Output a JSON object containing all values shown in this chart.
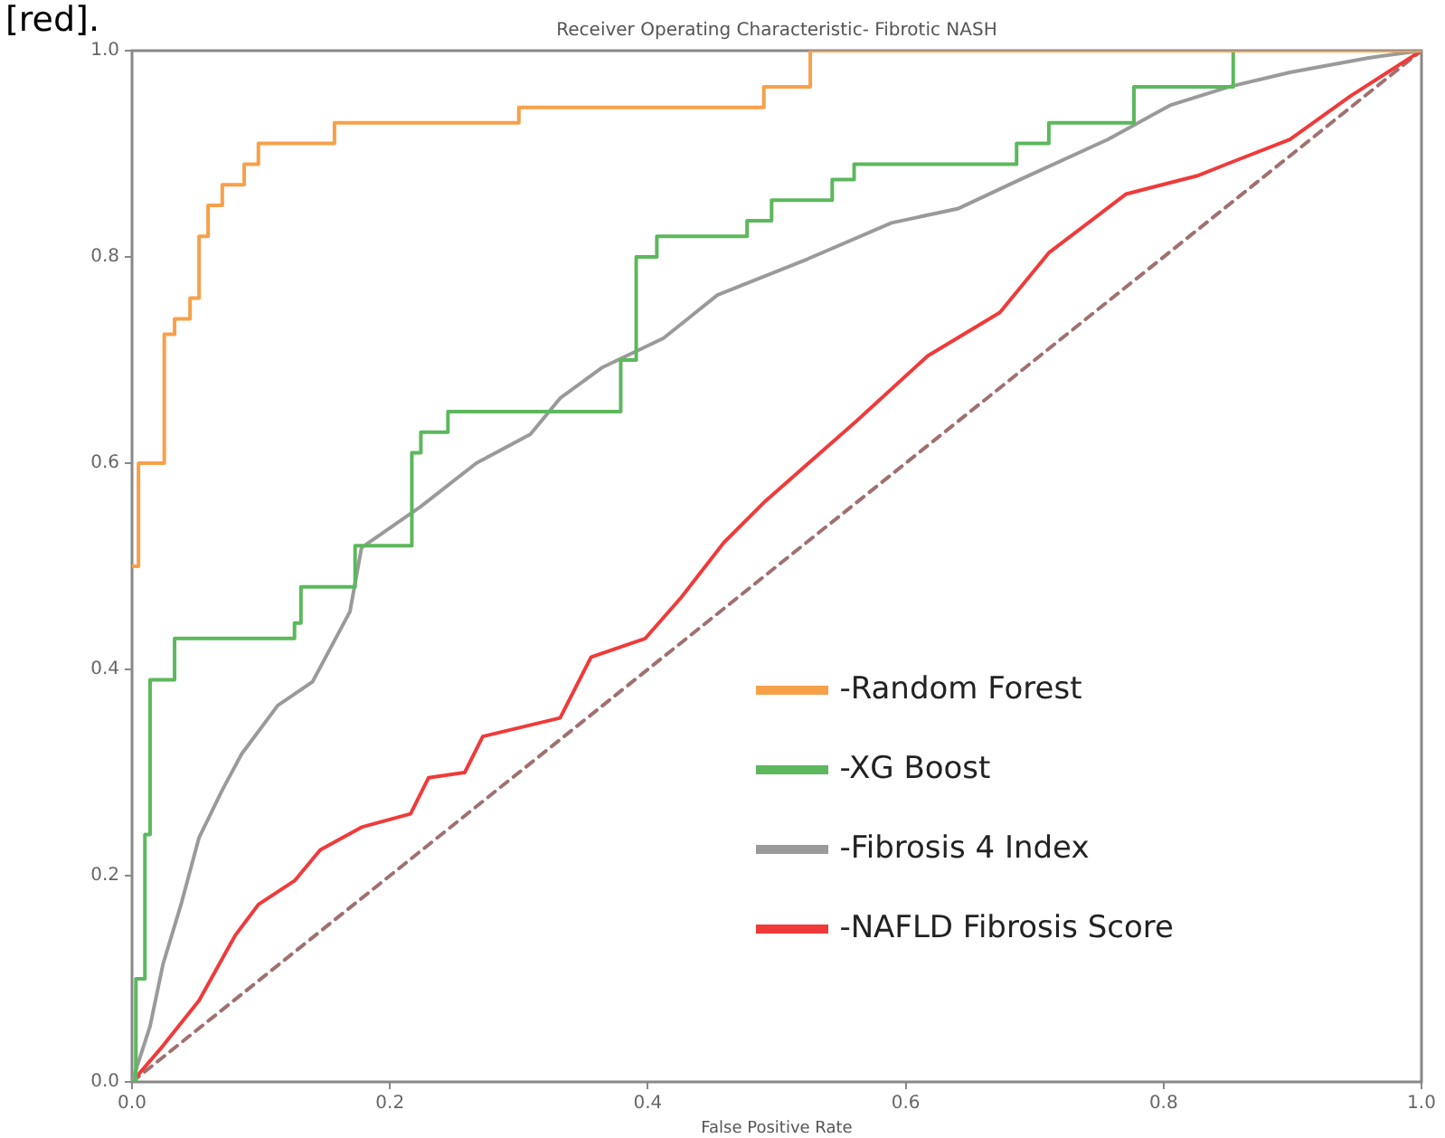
{
  "chart_data": {
    "type": "line",
    "title": "Receiver Operating Characteristic- Fibrotic NASH",
    "xlabel": "False Positive Rate",
    "annotations": [
      "[red]."
    ],
    "xlim": [
      0,
      1
    ],
    "ylim": [
      0,
      1
    ],
    "xticks": [
      {
        "value": 0,
        "label": "0.0"
      },
      {
        "value": 0.2,
        "label": "0.2"
      },
      {
        "value": 0.4,
        "label": "0.4"
      },
      {
        "value": 0.6,
        "label": "0.6"
      },
      {
        "value": 0.8,
        "label": "0.8"
      },
      {
        "value": 1,
        "label": "1.0"
      }
    ],
    "yticks": [
      {
        "value": 0,
        "label": "0.0"
      },
      {
        "value": 0.2,
        "label": "0.2"
      },
      {
        "value": 0.4,
        "label": "0.4"
      },
      {
        "value": 0.6,
        "label": "0.6"
      },
      {
        "value": 0.8,
        "label": "0.8"
      },
      {
        "value": 1,
        "label": "1.0"
      }
    ],
    "grid": false,
    "legend": "bottom right",
    "marker": "none",
    "series": [
      {
        "name": "-Random Forest",
        "type": "step",
        "color": "#f7a04a",
        "x": [
          0,
          0.005,
          0.025,
          0.033,
          0.045,
          0.052,
          0.059,
          0.07,
          0.087,
          0.098,
          0.157,
          0.3,
          0.49,
          0.526,
          1
        ],
        "values": [
          0.5,
          0.6,
          0.725,
          0.74,
          0.76,
          0.82,
          0.85,
          0.87,
          0.89,
          0.91,
          0.93,
          0.945,
          0.965,
          1,
          1
        ]
      },
      {
        "name": "-XG Boost",
        "type": "step",
        "color": "#5cb85c",
        "x": [
          0,
          0.003,
          0.01,
          0.014,
          0.033,
          0.126,
          0.131,
          0.173,
          0.217,
          0.224,
          0.245,
          0.379,
          0.391,
          0.407,
          0.477,
          0.496,
          0.543,
          0.56,
          0.686,
          0.711,
          0.777,
          0.854,
          1
        ],
        "values": [
          0,
          0.1,
          0.24,
          0.39,
          0.43,
          0.445,
          0.48,
          0.52,
          0.61,
          0.63,
          0.65,
          0.7,
          0.8,
          0.82,
          0.835,
          0.855,
          0.875,
          0.89,
          0.91,
          0.93,
          0.965,
          1,
          1
        ]
      },
      {
        "name": "-Fibrosis  4 Index",
        "color": "#9a9a9a",
        "x": [
          0,
          0.014,
          0.024,
          0.038,
          0.052,
          0.07,
          0.085,
          0.113,
          0.14,
          0.169,
          0.178,
          0.224,
          0.267,
          0.309,
          0.332,
          0.365,
          0.412,
          0.454,
          0.524,
          0.589,
          0.641,
          0.687,
          0.757,
          0.805,
          0.851,
          0.898,
          0.959,
          1
        ],
        "values": [
          0,
          0.054,
          0.114,
          0.172,
          0.237,
          0.283,
          0.318,
          0.365,
          0.388,
          0.456,
          0.518,
          0.558,
          0.6,
          0.628,
          0.663,
          0.693,
          0.721,
          0.763,
          0.798,
          0.833,
          0.847,
          0.874,
          0.914,
          0.947,
          0.965,
          0.979,
          0.993,
          1
        ]
      },
      {
        "name": "-NAFLD Fibrosis Score",
        "color": "#f03a3a",
        "x": [
          0,
          0.024,
          0.052,
          0.08,
          0.098,
          0.126,
          0.146,
          0.178,
          0.216,
          0.23,
          0.258,
          0.272,
          0.332,
          0.356,
          0.398,
          0.426,
          0.459,
          0.491,
          0.561,
          0.617,
          0.673,
          0.711,
          0.771,
          0.827,
          0.851,
          0.898,
          0.945,
          1
        ],
        "values": [
          0,
          0.035,
          0.079,
          0.142,
          0.172,
          0.195,
          0.225,
          0.247,
          0.26,
          0.295,
          0.3,
          0.335,
          0.353,
          0.412,
          0.43,
          0.47,
          0.523,
          0.563,
          0.64,
          0.704,
          0.746,
          0.804,
          0.861,
          0.879,
          0.891,
          0.914,
          0.956,
          1
        ]
      },
      {
        "color": "#a07070",
        "line_style": "dashed",
        "x": [
          0,
          1
        ],
        "values": [
          0,
          1
        ]
      }
    ]
  }
}
